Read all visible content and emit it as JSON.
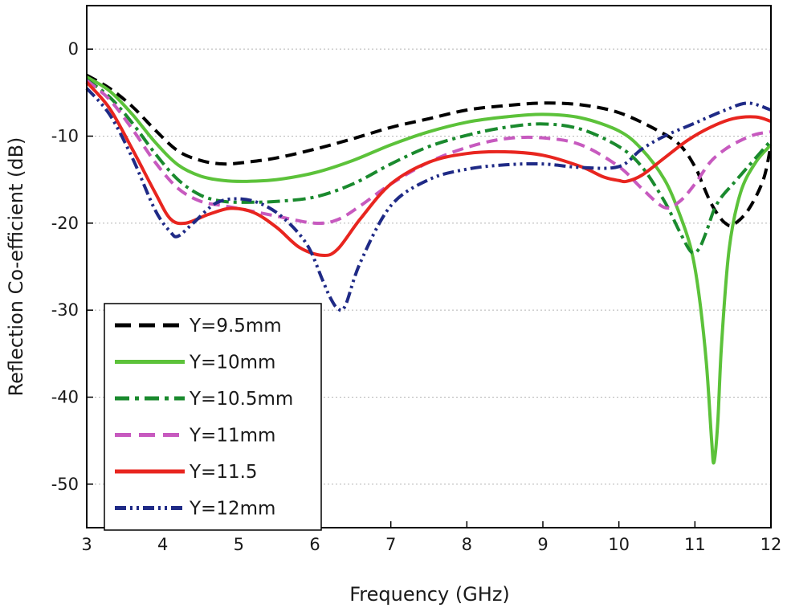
{
  "chart_data": {
    "type": "line",
    "title": "",
    "xlabel": "Frequency (GHz)",
    "ylabel": "Reflection Co-efficient (dB)",
    "xlim": [
      3,
      12
    ],
    "ylim": [
      -55,
      5
    ],
    "xticks": [
      3,
      4,
      5,
      6,
      7,
      8,
      9,
      10,
      11,
      12
    ],
    "yticks": [
      0,
      -10,
      -20,
      -30,
      -40,
      -50
    ],
    "grid": "horizontal-dotted",
    "legend_position": "bottom-left",
    "series": [
      {
        "name": "Y=9.5mm",
        "color": "#000000",
        "style": "dash",
        "x": [
          3.0,
          3.3,
          3.6,
          3.9,
          4.2,
          4.5,
          4.8,
          5.1,
          5.5,
          6.0,
          6.5,
          7.0,
          7.5,
          8.0,
          8.5,
          9.0,
          9.5,
          10.0,
          10.5,
          10.8,
          11.0,
          11.1,
          11.2,
          11.3,
          11.4,
          11.5,
          11.7,
          11.9,
          12.0
        ],
        "y": [
          -3.0,
          -4.5,
          -6.6,
          -9.3,
          -11.7,
          -12.8,
          -13.2,
          -13.0,
          -12.5,
          -11.5,
          -10.3,
          -9.0,
          -8.0,
          -7.0,
          -6.5,
          -6.2,
          -6.4,
          -7.3,
          -9.3,
          -11.0,
          -13.5,
          -15.5,
          -17.5,
          -19.0,
          -20.0,
          -20.2,
          -18.5,
          -15.0,
          -11.0
        ]
      },
      {
        "name": "Y=10mm",
        "color": "#5cc23a",
        "style": "solid",
        "x": [
          3.0,
          3.3,
          3.6,
          3.9,
          4.2,
          4.5,
          4.8,
          5.1,
          5.5,
          6.0,
          6.5,
          7.0,
          7.5,
          8.0,
          8.5,
          9.0,
          9.5,
          10.0,
          10.3,
          10.6,
          10.8,
          10.95,
          11.05,
          11.15,
          11.22,
          11.25,
          11.3,
          11.35,
          11.45,
          11.6,
          11.8,
          12.0
        ],
        "y": [
          -3.2,
          -4.8,
          -7.5,
          -10.7,
          -13.3,
          -14.6,
          -15.1,
          -15.2,
          -15.0,
          -14.2,
          -12.8,
          -11.0,
          -9.5,
          -8.4,
          -7.8,
          -7.5,
          -7.9,
          -9.4,
          -11.5,
          -15.0,
          -19.0,
          -23.0,
          -28.0,
          -36.0,
          -45.0,
          -47.5,
          -43.0,
          -34.0,
          -23.0,
          -16.5,
          -13.0,
          -11.0
        ]
      },
      {
        "name": "Y=10.5mm",
        "color": "#1a8a2e",
        "style": "dashdot",
        "x": [
          3.0,
          3.3,
          3.6,
          3.9,
          4.2,
          4.5,
          4.8,
          5.1,
          5.5,
          6.0,
          6.5,
          7.0,
          7.5,
          8.0,
          8.5,
          9.0,
          9.5,
          10.0,
          10.3,
          10.6,
          10.8,
          10.95,
          11.05,
          11.15,
          11.25,
          11.35,
          11.5,
          11.7,
          11.9,
          12.0
        ],
        "y": [
          -3.5,
          -5.5,
          -8.5,
          -12.0,
          -15.0,
          -16.8,
          -17.5,
          -17.6,
          -17.5,
          -17.0,
          -15.5,
          -13.2,
          -11.2,
          -9.9,
          -9.0,
          -8.6,
          -9.2,
          -11.2,
          -13.5,
          -17.5,
          -21.0,
          -23.3,
          -23.0,
          -21.0,
          -18.5,
          -17.0,
          -15.5,
          -13.5,
          -11.5,
          -10.5
        ]
      },
      {
        "name": "Y=11mm",
        "color": "#c75abf",
        "style": "dash",
        "x": [
          3.0,
          3.3,
          3.6,
          3.9,
          4.2,
          4.5,
          4.8,
          5.1,
          5.5,
          6.0,
          6.3,
          6.6,
          7.0,
          7.5,
          8.0,
          8.5,
          9.0,
          9.5,
          10.0,
          10.3,
          10.6,
          10.8,
          11.0,
          11.2,
          11.4,
          11.6,
          11.8,
          12.0
        ],
        "y": [
          -3.6,
          -5.8,
          -9.2,
          -13.0,
          -16.0,
          -17.5,
          -18.0,
          -18.5,
          -19.2,
          -20.0,
          -19.6,
          -18.0,
          -15.5,
          -13.0,
          -11.3,
          -10.3,
          -10.2,
          -11.0,
          -13.5,
          -16.0,
          -18.2,
          -17.5,
          -15.5,
          -13.0,
          -11.5,
          -10.5,
          -9.8,
          -9.5
        ]
      },
      {
        "name": "Y=11.5",
        "color": "#e8251f",
        "style": "solid",
        "x": [
          3.0,
          3.3,
          3.6,
          3.9,
          4.1,
          4.3,
          4.6,
          4.9,
          5.2,
          5.5,
          5.8,
          6.1,
          6.3,
          6.6,
          7.0,
          7.5,
          8.0,
          8.5,
          9.0,
          9.5,
          9.8,
          10.0,
          10.1,
          10.3,
          10.6,
          10.9,
          11.2,
          11.5,
          11.8,
          12.0
        ],
        "y": [
          -3.8,
          -6.8,
          -11.5,
          -16.5,
          -19.5,
          -20.0,
          -19.0,
          -18.3,
          -18.8,
          -20.5,
          -22.8,
          -23.7,
          -23.0,
          -19.5,
          -15.5,
          -13.0,
          -12.0,
          -11.8,
          -12.2,
          -13.5,
          -14.7,
          -15.1,
          -15.2,
          -14.5,
          -12.5,
          -10.5,
          -9.0,
          -8.0,
          -7.8,
          -8.3
        ]
      },
      {
        "name": "Y=12mm",
        "color": "#1f2a86",
        "style": "dashdotdot",
        "x": [
          3.0,
          3.3,
          3.6,
          3.9,
          4.1,
          4.2,
          4.4,
          4.7,
          5.0,
          5.3,
          5.6,
          5.9,
          6.1,
          6.2,
          6.3,
          6.4,
          6.6,
          7.0,
          7.5,
          8.0,
          8.5,
          9.0,
          9.5,
          10.0,
          10.3,
          10.6,
          11.0,
          11.4,
          11.7,
          12.0
        ],
        "y": [
          -4.5,
          -7.5,
          -12.5,
          -18.5,
          -21.0,
          -21.5,
          -20.0,
          -17.7,
          -17.2,
          -17.8,
          -19.5,
          -22.5,
          -26.5,
          -28.5,
          -29.8,
          -29.5,
          -24.5,
          -18.0,
          -15.0,
          -13.8,
          -13.3,
          -13.2,
          -13.6,
          -13.5,
          -11.5,
          -10.0,
          -8.5,
          -7.0,
          -6.2,
          -7.0
        ]
      }
    ]
  }
}
